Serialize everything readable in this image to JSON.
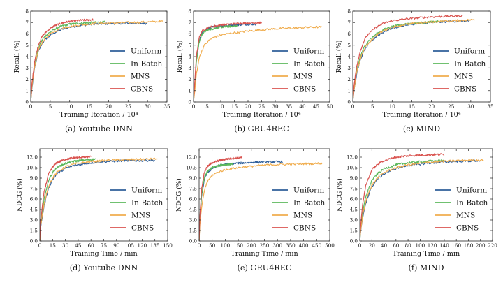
{
  "figure": {
    "background": "#ffffff"
  },
  "legend_placement": "lower-right",
  "series_styles": [
    {
      "name": "Uniform",
      "color": "#2f5f9a"
    },
    {
      "name": "In-Batch",
      "color": "#5cb85c"
    },
    {
      "name": "MNS",
      "color": "#f0ad4e"
    },
    {
      "name": "CBNS",
      "color": "#d9534f"
    }
  ],
  "chart_data": [
    {
      "type": "line",
      "caption": "(a) Youtube DNN",
      "xlabel": "Training Iteration / 10⁴",
      "ylabel": "Recall (%)",
      "xlim": [
        0,
        35
      ],
      "ylim": [
        0,
        8
      ],
      "xticks": [
        0,
        5,
        10,
        15,
        20,
        25,
        30,
        35
      ],
      "xtick_labels": [
        "0",
        "5",
        "10",
        "15",
        "20",
        "25",
        "30",
        "35"
      ],
      "yticks": [
        0,
        1,
        2,
        3,
        4,
        5,
        6,
        7,
        8
      ],
      "ytick_labels": [
        "0",
        "1",
        "2",
        "3",
        "4",
        "5",
        "6",
        "7",
        "8"
      ],
      "grid": false,
      "legend": "lower-right",
      "series": [
        {
          "name": "Uniform",
          "x": [
            0.3,
            1,
            2,
            3,
            4,
            6,
            8,
            10,
            13,
            16,
            20,
            25,
            30
          ],
          "values": [
            1.2,
            3.0,
            4.5,
            5.2,
            5.6,
            6.1,
            6.4,
            6.6,
            6.75,
            6.85,
            6.9,
            6.95,
            6.9
          ]
        },
        {
          "name": "In-Batch",
          "x": [
            0.3,
            1,
            2,
            3,
            4,
            6,
            8,
            10,
            13,
            16,
            19
          ],
          "values": [
            1.4,
            3.2,
            4.8,
            5.5,
            5.9,
            6.4,
            6.7,
            6.85,
            6.95,
            7.0,
            7.05
          ]
        },
        {
          "name": "MNS",
          "x": [
            0.3,
            1,
            2,
            3,
            4,
            6,
            8,
            10,
            13,
            16,
            20,
            25,
            30,
            34
          ],
          "values": [
            1.3,
            3.1,
            4.6,
            5.3,
            5.7,
            6.2,
            6.5,
            6.65,
            6.8,
            6.9,
            6.95,
            7.0,
            7.05,
            7.1
          ]
        },
        {
          "name": "CBNS",
          "x": [
            0.3,
            1,
            2,
            3,
            4,
            6,
            8,
            10,
            13,
            16
          ],
          "values": [
            1.6,
            3.6,
            5.1,
            5.8,
            6.2,
            6.7,
            6.95,
            7.1,
            7.2,
            7.25
          ]
        }
      ]
    },
    {
      "type": "line",
      "caption": "(b) GRU4REC",
      "xlabel": "Training Iteration / 10⁴",
      "ylabel": "Recall (%)",
      "xlim": [
        0,
        50
      ],
      "ylim": [
        0,
        8
      ],
      "xticks": [
        0,
        5,
        10,
        15,
        20,
        25,
        30,
        35,
        40,
        45,
        50
      ],
      "xtick_labels": [
        "0",
        "5",
        "10",
        "15",
        "20",
        "25",
        "30",
        "35",
        "40",
        "45",
        "50"
      ],
      "yticks": [
        0,
        1,
        2,
        3,
        4,
        5,
        6,
        7,
        8
      ],
      "ytick_labels": [
        "0",
        "1",
        "2",
        "3",
        "4",
        "5",
        "6",
        "7",
        "8"
      ],
      "grid": false,
      "legend": "lower-right",
      "series": [
        {
          "name": "Uniform",
          "x": [
            0.5,
            1,
            2,
            3,
            4,
            6,
            8,
            10,
            13,
            16,
            20,
            23
          ],
          "values": [
            1.5,
            3.5,
            5.3,
            6.0,
            6.3,
            6.55,
            6.65,
            6.7,
            6.75,
            6.8,
            6.85,
            6.85
          ]
        },
        {
          "name": "In-Batch",
          "x": [
            0.5,
            1,
            2,
            3,
            4,
            6,
            8,
            10,
            13,
            16
          ],
          "values": [
            1.5,
            3.4,
            5.2,
            5.9,
            6.2,
            6.4,
            6.5,
            6.6,
            6.65,
            6.7
          ]
        },
        {
          "name": "MNS",
          "x": [
            0.5,
            1,
            2,
            3,
            4,
            6,
            8,
            10,
            15,
            20,
            25,
            30,
            35,
            40,
            45,
            47
          ],
          "values": [
            1.0,
            2.4,
            3.8,
            4.5,
            5.0,
            5.5,
            5.75,
            5.9,
            6.1,
            6.25,
            6.35,
            6.45,
            6.5,
            6.55,
            6.6,
            6.6
          ]
        },
        {
          "name": "CBNS",
          "x": [
            0.5,
            1,
            2,
            3,
            4,
            6,
            8,
            10,
            13,
            16,
            20,
            25
          ],
          "values": [
            1.8,
            3.9,
            5.6,
            6.2,
            6.4,
            6.6,
            6.7,
            6.8,
            6.85,
            6.9,
            6.95,
            7.0
          ]
        }
      ]
    },
    {
      "type": "line",
      "caption": "(c) MIND",
      "xlabel": "Training Iteration / 10⁴",
      "ylabel": "Recall (%)",
      "xlim": [
        0,
        35
      ],
      "ylim": [
        0,
        8
      ],
      "xticks": [
        0,
        5,
        10,
        15,
        20,
        25,
        30,
        35
      ],
      "xtick_labels": [
        "0",
        "5",
        "10",
        "15",
        "20",
        "25",
        "30",
        "35"
      ],
      "yticks": [
        0,
        1,
        2,
        3,
        4,
        5,
        6,
        7,
        8
      ],
      "ytick_labels": [
        "0",
        "1",
        "2",
        "3",
        "4",
        "5",
        "6",
        "7",
        "8"
      ],
      "grid": false,
      "legend": "lower-right",
      "series": [
        {
          "name": "Uniform",
          "x": [
            0.3,
            1,
            2,
            3,
            4,
            6,
            8,
            10,
            13,
            16,
            20,
            25,
            30
          ],
          "values": [
            1.0,
            2.5,
            3.8,
            4.6,
            5.1,
            5.8,
            6.2,
            6.5,
            6.75,
            6.9,
            7.0,
            7.1,
            7.15
          ]
        },
        {
          "name": "In-Batch",
          "x": [
            0.3,
            1,
            2,
            3,
            4,
            6,
            8,
            10,
            13,
            16,
            20,
            23
          ],
          "values": [
            1.2,
            2.8,
            4.1,
            4.9,
            5.4,
            6.0,
            6.4,
            6.65,
            6.85,
            6.95,
            7.05,
            7.1
          ]
        },
        {
          "name": "MNS",
          "x": [
            0.3,
            1,
            2,
            3,
            4,
            6,
            8,
            10,
            13,
            16,
            20,
            25,
            31
          ],
          "values": [
            1.1,
            2.6,
            3.9,
            4.7,
            5.2,
            5.9,
            6.3,
            6.6,
            6.8,
            6.95,
            7.05,
            7.15,
            7.25
          ]
        },
        {
          "name": "CBNS",
          "x": [
            0.3,
            1,
            2,
            3,
            4,
            6,
            8,
            10,
            13,
            16,
            20,
            24,
            28
          ],
          "values": [
            1.5,
            3.2,
            4.6,
            5.5,
            6.0,
            6.6,
            6.95,
            7.15,
            7.3,
            7.4,
            7.5,
            7.55,
            7.6
          ]
        }
      ]
    },
    {
      "type": "line",
      "caption": "(d) Youtube DNN",
      "xlabel": "Training Time / min",
      "ylabel": "NDCG (%)",
      "xlim": [
        0,
        150
      ],
      "ylim": [
        0,
        13.2
      ],
      "xticks": [
        0,
        15,
        30,
        45,
        60,
        75,
        90,
        105,
        120,
        135,
        150
      ],
      "xtick_labels": [
        "0",
        "15",
        "30",
        "45",
        "60",
        "75",
        "90",
        "105",
        "120",
        "135",
        "150"
      ],
      "yticks": [
        0,
        1.5,
        3,
        4.5,
        6,
        7.5,
        9,
        10.5,
        12
      ],
      "ytick_labels": [
        "0.0",
        "1.5",
        "3.0",
        "4.5",
        "6.0",
        "7.5",
        "9.0",
        "10.5",
        "12.0"
      ],
      "grid": false,
      "legend": "lower-right",
      "series": [
        {
          "name": "Uniform",
          "x": [
            1,
            5,
            10,
            15,
            20,
            30,
            40,
            50,
            60,
            75,
            90,
            105,
            120,
            135
          ],
          "values": [
            2.0,
            5.0,
            7.5,
            8.8,
            9.6,
            10.4,
            10.8,
            11.0,
            11.2,
            11.35,
            11.45,
            11.5,
            11.5,
            11.55
          ]
        },
        {
          "name": "In-Batch",
          "x": [
            1,
            5,
            10,
            15,
            20,
            30,
            40,
            50,
            60,
            66
          ],
          "values": [
            2.5,
            6.0,
            8.5,
            9.8,
            10.5,
            11.1,
            11.4,
            11.55,
            11.65,
            11.7
          ]
        },
        {
          "name": "MNS",
          "x": [
            1,
            5,
            10,
            15,
            20,
            30,
            40,
            50,
            60,
            75,
            90,
            105,
            120,
            138
          ],
          "values": [
            2.2,
            5.3,
            7.8,
            9.0,
            9.8,
            10.6,
            11.0,
            11.2,
            11.35,
            11.5,
            11.6,
            11.65,
            11.7,
            11.75
          ]
        },
        {
          "name": "CBNS",
          "x": [
            1,
            5,
            10,
            15,
            20,
            30,
            40,
            50,
            60
          ],
          "values": [
            3.0,
            7.0,
            9.5,
            10.6,
            11.2,
            11.7,
            11.9,
            12.0,
            12.05
          ]
        }
      ]
    },
    {
      "type": "line",
      "caption": "(e) GRU4REC",
      "xlabel": "Training Time / min",
      "ylabel": "NDCG (%)",
      "xlim": [
        0,
        500
      ],
      "ylim": [
        0,
        13.2
      ],
      "xticks": [
        0,
        50,
        100,
        150,
        200,
        250,
        300,
        350,
        400,
        450,
        500
      ],
      "xtick_labels": [
        "0",
        "50",
        "100",
        "150",
        "200",
        "250",
        "300",
        "350",
        "400",
        "450",
        "500"
      ],
      "yticks": [
        0,
        1.5,
        3,
        4.5,
        6,
        7.5,
        9,
        10.5,
        12
      ],
      "ytick_labels": [
        "0.0",
        "1.5",
        "3.0",
        "4.5",
        "6.0",
        "7.5",
        "9.0",
        "10.5",
        "12.0"
      ],
      "grid": false,
      "legend": "lower-right",
      "series": [
        {
          "name": "Uniform",
          "x": [
            3,
            10,
            20,
            30,
            50,
            75,
            100,
            150,
            200,
            250,
            300,
            320
          ],
          "values": [
            3.0,
            6.5,
            8.8,
            9.7,
            10.4,
            10.8,
            11.0,
            11.15,
            11.25,
            11.3,
            11.35,
            11.35
          ]
        },
        {
          "name": "In-Batch",
          "x": [
            3,
            10,
            20,
            30,
            50,
            75,
            100,
            130
          ],
          "values": [
            3.2,
            6.8,
            9.0,
            9.9,
            10.5,
            10.8,
            10.95,
            11.0
          ]
        },
        {
          "name": "MNS",
          "x": [
            3,
            10,
            20,
            30,
            50,
            75,
            100,
            150,
            200,
            250,
            300,
            350,
            400,
            450,
            470
          ],
          "values": [
            2.2,
            5.0,
            7.2,
            8.4,
            9.4,
            9.9,
            10.2,
            10.5,
            10.7,
            10.85,
            10.95,
            11.0,
            11.05,
            11.1,
            11.1
          ]
        },
        {
          "name": "CBNS",
          "x": [
            3,
            10,
            20,
            30,
            50,
            75,
            100,
            130,
            165
          ],
          "values": [
            3.6,
            7.6,
            9.8,
            10.6,
            11.2,
            11.5,
            11.7,
            11.85,
            11.95
          ]
        }
      ]
    },
    {
      "type": "line",
      "caption": "(f) MIND",
      "xlabel": "Training Time / min",
      "ylabel": "NDCG (%)",
      "xlim": [
        0,
        220
      ],
      "ylim": [
        0,
        13.2
      ],
      "xticks": [
        0,
        20,
        40,
        60,
        80,
        100,
        120,
        140,
        160,
        180,
        200,
        220
      ],
      "xtick_labels": [
        "0",
        "20",
        "40",
        "60",
        "80",
        "100",
        "120",
        "140",
        "160",
        "180",
        "200",
        "220"
      ],
      "yticks": [
        0,
        1.5,
        3,
        4.5,
        6,
        7.5,
        9,
        10.5,
        12
      ],
      "ytick_labels": [
        "0.0",
        "1.5",
        "3.0",
        "4.5",
        "6.0",
        "7.5",
        "9.0",
        "10.5",
        "12.0"
      ],
      "grid": false,
      "legend": "lower-right",
      "series": [
        {
          "name": "Uniform",
          "x": [
            1,
            5,
            10,
            20,
            30,
            40,
            60,
            80,
            100,
            120,
            140,
            160,
            180,
            200
          ],
          "values": [
            1.0,
            3.5,
            5.5,
            7.8,
            8.9,
            9.6,
            10.4,
            10.8,
            11.0,
            11.2,
            11.3,
            11.4,
            11.45,
            11.5
          ]
        },
        {
          "name": "In-Batch",
          "x": [
            1,
            5,
            10,
            20,
            30,
            40,
            60,
            80,
            100,
            120,
            140
          ],
          "values": [
            1.2,
            4.2,
            6.4,
            8.7,
            9.7,
            10.3,
            10.9,
            11.2,
            11.35,
            11.45,
            11.5
          ]
        },
        {
          "name": "MNS",
          "x": [
            1,
            5,
            10,
            20,
            30,
            40,
            60,
            80,
            100,
            120,
            140,
            160,
            180,
            205
          ],
          "values": [
            1.1,
            3.8,
            5.8,
            8.0,
            9.1,
            9.8,
            10.5,
            10.9,
            11.1,
            11.3,
            11.4,
            11.5,
            11.55,
            11.6
          ]
        },
        {
          "name": "CBNS",
          "x": [
            1,
            5,
            10,
            20,
            30,
            40,
            60,
            80,
            100,
            120,
            140
          ],
          "values": [
            1.8,
            5.5,
            8.0,
            10.2,
            11.0,
            11.5,
            12.0,
            12.2,
            12.3,
            12.35,
            12.4
          ]
        }
      ]
    }
  ]
}
